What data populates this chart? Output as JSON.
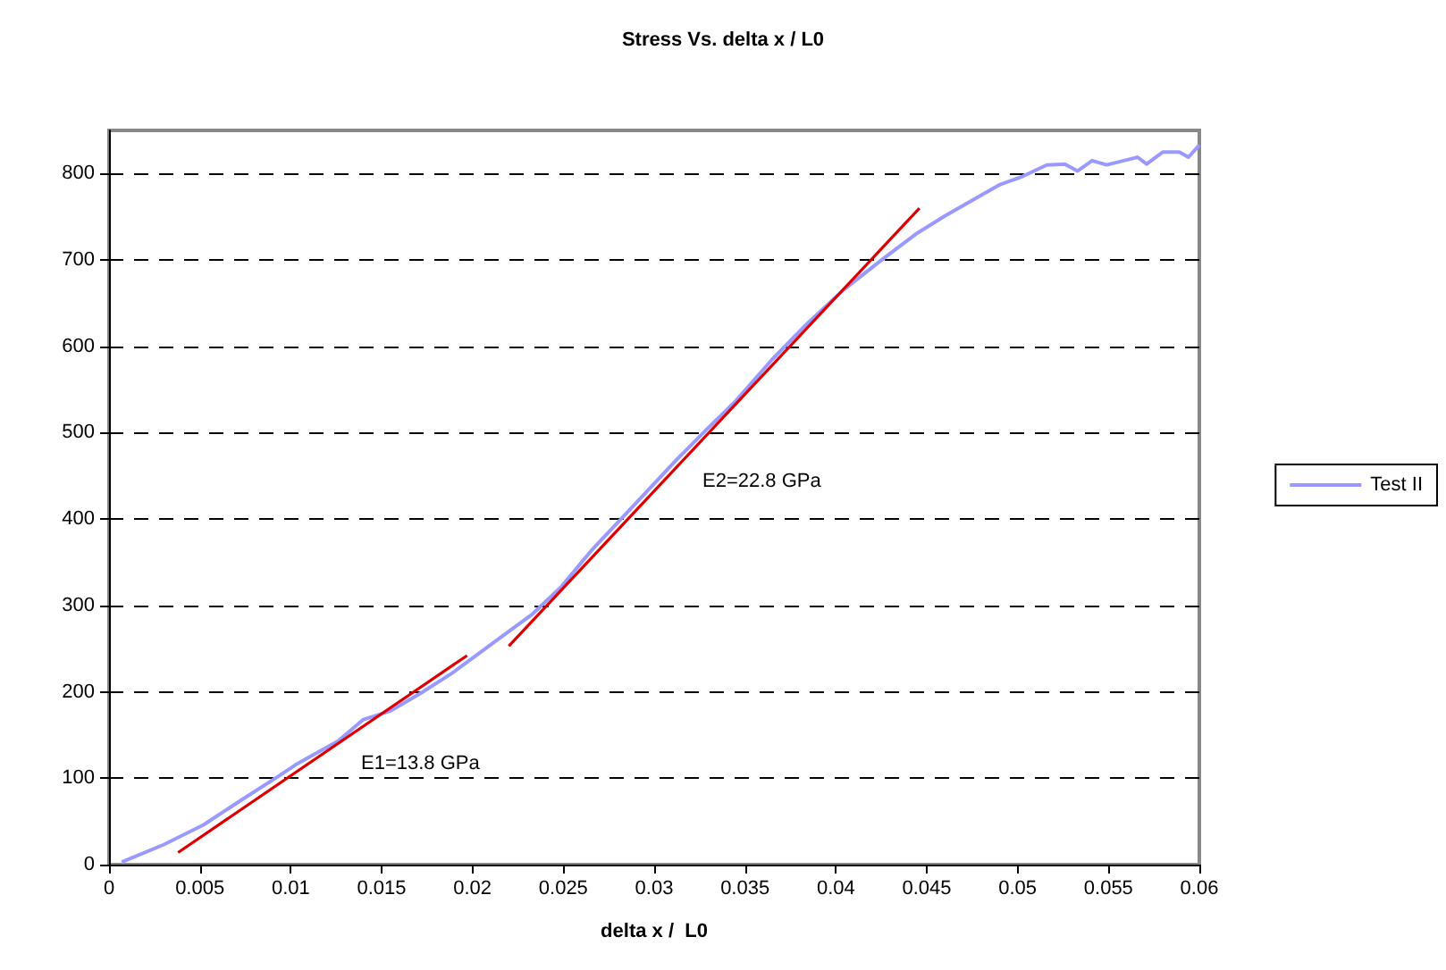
{
  "chart_data": {
    "type": "line",
    "title": "Stress Vs. delta x / L0",
    "xlabel": "delta x /  L0",
    "xlim": [
      0,
      0.06
    ],
    "xticks": [
      0,
      0.005,
      0.01,
      0.015,
      0.02,
      0.025,
      0.03,
      0.035,
      0.04,
      0.045,
      0.05,
      0.055,
      0.06
    ],
    "ylim": [
      0,
      850
    ],
    "yticks": [
      0,
      100,
      200,
      300,
      400,
      500,
      600,
      700,
      800
    ],
    "grid": "y",
    "legend": "right",
    "marker": "none",
    "line_style": "solid",
    "series": [
      {
        "name": "Test II",
        "color": "#9999ff",
        "x": [
          0.0007,
          0.003,
          0.0052,
          0.0073,
          0.0093,
          0.0103,
          0.0126,
          0.014,
          0.0155,
          0.0172,
          0.0189,
          0.0202,
          0.0218,
          0.0233,
          0.0249,
          0.0266,
          0.0292,
          0.0312,
          0.0328,
          0.0345,
          0.0365,
          0.0384,
          0.0404,
          0.0427,
          0.0444,
          0.046,
          0.048,
          0.049,
          0.0503,
          0.0516,
          0.0526,
          0.0533,
          0.0541,
          0.0549,
          0.0566,
          0.0571,
          0.058,
          0.0589,
          0.0594,
          0.06
        ],
        "values": [
          3,
          23,
          46,
          75,
          102,
          116,
          143,
          168,
          178,
          199,
          222,
          242,
          267,
          290,
          322,
          365,
          423,
          468,
          502,
          537,
          585,
          626,
          665,
          703,
          730,
          751,
          775,
          787,
          797,
          810,
          811,
          803,
          815,
          810,
          819,
          811,
          825,
          825,
          819,
          833
        ]
      },
      {
        "type": "line",
        "color": "#dd0000",
        "x": [
          0.0038,
          0.0197
        ],
        "values": [
          14,
          242
        ]
      },
      {
        "type": "line",
        "color": "#dd0000",
        "x": [
          0.022,
          0.0446
        ],
        "values": [
          253,
          760
        ]
      }
    ],
    "annotations": [
      "E1=13.8 GPa",
      "E2=22.8 GPa"
    ]
  }
}
